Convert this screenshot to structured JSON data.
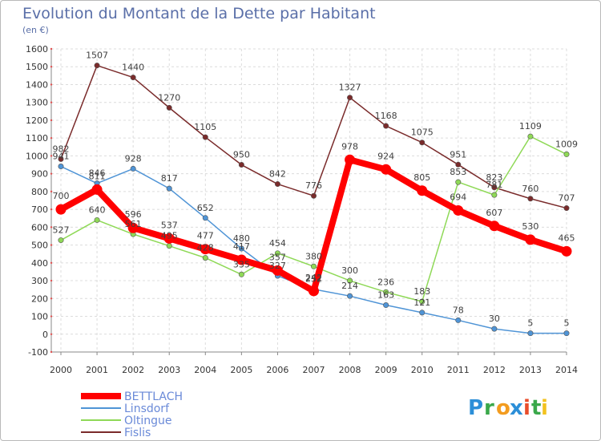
{
  "chart_data": {
    "type": "line",
    "title": "Evolution du Montant de la Dette par Habitant",
    "subtitle": "(en €)",
    "xlabel": "",
    "ylabel": "",
    "x": [
      "2000",
      "2001",
      "2002",
      "2003",
      "2004",
      "2005",
      "2006",
      "2007",
      "2008",
      "2009",
      "2010",
      "2011",
      "2012",
      "2013",
      "2014"
    ],
    "ylim": [
      -100,
      1600
    ],
    "yticks": [
      "-100",
      "0",
      "100",
      "200",
      "300",
      "400",
      "500",
      "600",
      "700",
      "800",
      "900",
      "1000",
      "1100",
      "1200",
      "1300",
      "1400",
      "1500",
      "1600"
    ],
    "grid": true,
    "legend_position": "bottom-left",
    "series": [
      {
        "name": "BETTLACH",
        "color": "#ff0000",
        "values": [
          700,
          811,
          596,
          537,
          477,
          417,
          357,
          242,
          978,
          924,
          805,
          694,
          607,
          530,
          465
        ]
      },
      {
        "name": "Linsdorf",
        "color": "#4f94d6",
        "values": [
          941,
          846,
          928,
          817,
          652,
          480,
          327,
          252,
          214,
          163,
          121,
          78,
          30,
          5,
          5
        ]
      },
      {
        "name": "Oltingue",
        "color": "#8fd957",
        "values": [
          527,
          640,
          561,
          495,
          428,
          335,
          454,
          380,
          300,
          236,
          183,
          853,
          781,
          1109,
          1009
        ]
      },
      {
        "name": "Fislis",
        "color": "#7a2b2b",
        "values": [
          982,
          1507,
          1440,
          1270,
          1105,
          950,
          842,
          776,
          1327,
          1168,
          1075,
          951,
          823,
          760,
          707
        ]
      }
    ]
  },
  "logo": {
    "letters": [
      "P",
      "r",
      "o",
      "x",
      "i",
      "t",
      "i"
    ],
    "colors": [
      "#2c8fd8",
      "#3aa84a",
      "#f39c1f",
      "#2c8fd8",
      "#e94d2b",
      "#3aa84a",
      "#f3c21f"
    ]
  }
}
